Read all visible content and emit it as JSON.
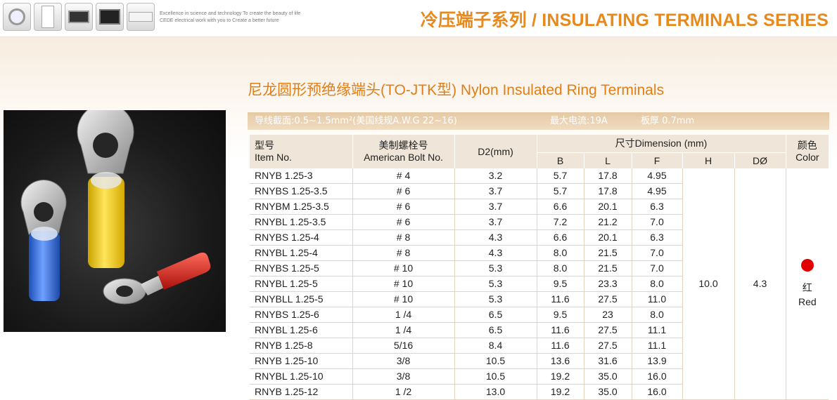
{
  "header": {
    "slogan_line1": "Excellence in science and technology To create the beauty of life",
    "slogan_line2": "CEDE electrical work with you to Create a better future",
    "series_title": "冷压端子系列 / INSULATING TERMINALS SERIES",
    "appliance_icons": [
      "washing-machine-icon",
      "refrigerator-icon",
      "microwave-icon",
      "television-icon",
      "air-conditioner-icon"
    ]
  },
  "product": {
    "title": "尼龙圆形预绝缘端头(TO-JTK型)  Nylon Insulated Ring Terminals"
  },
  "specs": {
    "wire_range": "导线截面:0.5~1.5mm²(美国线规A.W.G 22~16)",
    "max_current": "最大电流:19A",
    "thickness": "板厚 0.7mm"
  },
  "table": {
    "headers": {
      "item_cn": "型号",
      "item_en": "Item No.",
      "bolt_cn": "美制螺栓号",
      "bolt_en": "American Bolt No.",
      "d2": "D2(mm)",
      "dimension": "尺寸Dimension (mm)",
      "b": "B",
      "l": "L",
      "f": "F",
      "h": "H",
      "d": "DØ",
      "color_cn": "颜色",
      "color_en": "Color"
    },
    "shared": {
      "h": "10.0",
      "d": "4.3",
      "color_cn": "红",
      "color_en": "Red",
      "color_hex": "#e00000"
    },
    "rows": [
      {
        "item": "RNYB 1.25-3",
        "bolt": "# 4",
        "d2": "3.2",
        "b": "5.7",
        "l": "17.8",
        "f": "4.95"
      },
      {
        "item": "RNYBS 1.25-3.5",
        "bolt": "# 6",
        "d2": "3.7",
        "b": "5.7",
        "l": "17.8",
        "f": "4.95"
      },
      {
        "item": "RNYBM 1.25-3.5",
        "bolt": "# 6",
        "d2": "3.7",
        "b": "6.6",
        "l": "20.1",
        "f": "6.3"
      },
      {
        "item": "RNYBL 1.25-3.5",
        "bolt": "# 6",
        "d2": "3.7",
        "b": "7.2",
        "l": "21.2",
        "f": "7.0"
      },
      {
        "item": "RNYBS 1.25-4",
        "bolt": "# 8",
        "d2": "4.3",
        "b": "6.6",
        "l": "20.1",
        "f": "6.3"
      },
      {
        "item": "RNYBL 1.25-4",
        "bolt": "# 8",
        "d2": "4.3",
        "b": "8.0",
        "l": "21.5",
        "f": "7.0"
      },
      {
        "item": "RNYBS 1.25-5",
        "bolt": "# 10",
        "d2": "5.3",
        "b": "8.0",
        "l": "21.5",
        "f": "7.0"
      },
      {
        "item": "RNYBL 1.25-5",
        "bolt": "# 10",
        "d2": "5.3",
        "b": "9.5",
        "l": "23.3",
        "f": "8.0"
      },
      {
        "item": "RNYBLL 1.25-5",
        "bolt": "# 10",
        "d2": "5.3",
        "b": "11.6",
        "l": "27.5",
        "f": "11.0"
      },
      {
        "item": "RNYBS 1.25-6",
        "bolt": "1 /4",
        "d2": "6.5",
        "b": "9.5",
        "l": "23",
        "f": "8.0"
      },
      {
        "item": "RNYBL 1.25-6",
        "bolt": "1 /4",
        "d2": "6.5",
        "b": "11.6",
        "l": "27.5",
        "f": "11.1"
      },
      {
        "item": "RNYB 1.25-8",
        "bolt": "5/16",
        "d2": "8.4",
        "b": "11.6",
        "l": "27.5",
        "f": "11.1"
      },
      {
        "item": "RNYB 1.25-10",
        "bolt": "3/8",
        "d2": "10.5",
        "b": "13.6",
        "l": "31.6",
        "f": "13.9"
      },
      {
        "item": "RNYBL 1.25-10",
        "bolt": "3/8",
        "d2": "10.5",
        "b": "19.2",
        "l": "35.0",
        "f": "16.0"
      },
      {
        "item": "RNYB 1.25-12",
        "bolt": "1 /2",
        "d2": "13.0",
        "b": "19.2",
        "l": "35.0",
        "f": "16.0"
      }
    ]
  }
}
